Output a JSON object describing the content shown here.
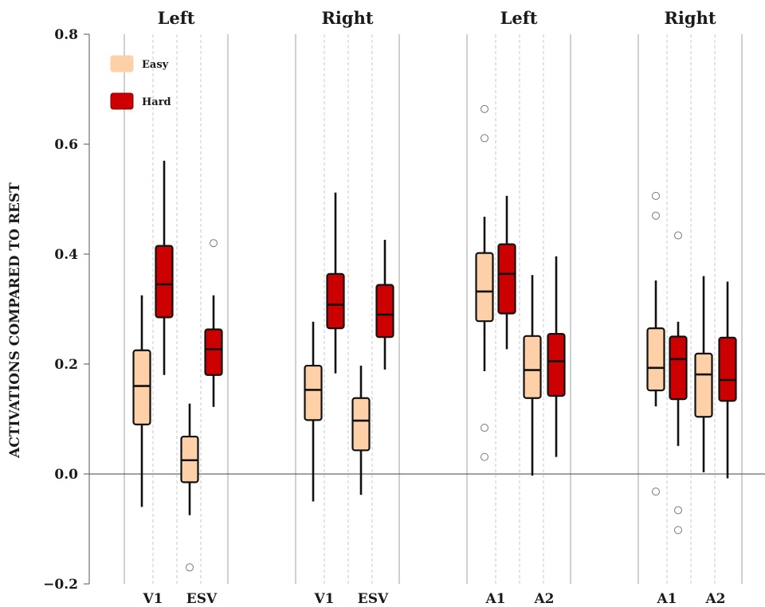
{
  "chart_data": {
    "type": "boxplot",
    "ylabel": "ACTIVATIONS COMPARED TO REST",
    "ylim": [
      -0.2,
      0.8
    ],
    "yticks": [
      "−0.2",
      "0.0",
      "0.2",
      "0.4",
      "0.6",
      "0.8"
    ],
    "ytick_values": [
      -0.2,
      0.0,
      0.2,
      0.4,
      0.6,
      0.8
    ],
    "reference_line": 0.0,
    "legend": {
      "position": "top-left",
      "entries": [
        {
          "name": "Easy",
          "color": "#fdd0a8"
        },
        {
          "name": "Hard",
          "color": "#cc0000"
        }
      ]
    },
    "groups": [
      {
        "title": "Left",
        "regions": [
          {
            "label": "V1",
            "boxes": [
              {
                "condition": "Easy",
                "whisker_low": -0.06,
                "q1": 0.09,
                "median": 0.16,
                "q3": 0.225,
                "whisker_high": 0.325,
                "outliers": []
              },
              {
                "condition": "Hard",
                "whisker_low": 0.18,
                "q1": 0.285,
                "median": 0.345,
                "q3": 0.415,
                "whisker_high": 0.57,
                "outliers": []
              }
            ]
          },
          {
            "label": "ESV",
            "boxes": [
              {
                "condition": "Easy",
                "whisker_low": -0.075,
                "q1": -0.015,
                "median": 0.025,
                "q3": 0.068,
                "whisker_high": 0.128,
                "outliers": [
                  -0.17
                ]
              },
              {
                "condition": "Hard",
                "whisker_low": 0.122,
                "q1": 0.18,
                "median": 0.227,
                "q3": 0.263,
                "whisker_high": 0.325,
                "outliers": [
                  0.42
                ]
              }
            ]
          }
        ]
      },
      {
        "title": "Right",
        "regions": [
          {
            "label": "V1",
            "boxes": [
              {
                "condition": "Easy",
                "whisker_low": -0.05,
                "q1": 0.098,
                "median": 0.153,
                "q3": 0.197,
                "whisker_high": 0.277,
                "outliers": []
              },
              {
                "condition": "Hard",
                "whisker_low": 0.183,
                "q1": 0.265,
                "median": 0.308,
                "q3": 0.364,
                "whisker_high": 0.512,
                "outliers": []
              }
            ]
          },
          {
            "label": "ESV",
            "boxes": [
              {
                "condition": "Easy",
                "whisker_low": -0.038,
                "q1": 0.043,
                "median": 0.097,
                "q3": 0.138,
                "whisker_high": 0.197,
                "outliers": []
              },
              {
                "condition": "Hard",
                "whisker_low": 0.19,
                "q1": 0.249,
                "median": 0.29,
                "q3": 0.344,
                "whisker_high": 0.426,
                "outliers": []
              }
            ]
          }
        ]
      },
      {
        "title": "Left",
        "regions": [
          {
            "label": "A1",
            "boxes": [
              {
                "condition": "Easy",
                "whisker_low": 0.187,
                "q1": 0.278,
                "median": 0.332,
                "q3": 0.402,
                "whisker_high": 0.468,
                "outliers": [
                  0.664,
                  0.611,
                  0.084,
                  0.031
                ]
              },
              {
                "condition": "Hard",
                "whisker_low": 0.227,
                "q1": 0.292,
                "median": 0.364,
                "q3": 0.418,
                "whisker_high": 0.506,
                "outliers": []
              }
            ]
          },
          {
            "label": "A2",
            "boxes": [
              {
                "condition": "Easy",
                "whisker_low": -0.003,
                "q1": 0.138,
                "median": 0.189,
                "q3": 0.251,
                "whisker_high": 0.362,
                "outliers": []
              },
              {
                "condition": "Hard",
                "whisker_low": 0.031,
                "q1": 0.142,
                "median": 0.205,
                "q3": 0.255,
                "whisker_high": 0.396,
                "outliers": []
              }
            ]
          }
        ]
      },
      {
        "title": "Right",
        "regions": [
          {
            "label": "A1",
            "boxes": [
              {
                "condition": "Easy",
                "whisker_low": 0.123,
                "q1": 0.152,
                "median": 0.193,
                "q3": 0.265,
                "whisker_high": 0.352,
                "outliers": [
                  0.506,
                  0.47,
                  -0.032
                ]
              },
              {
                "condition": "Hard",
                "whisker_low": 0.051,
                "q1": 0.136,
                "median": 0.209,
                "q3": 0.25,
                "whisker_high": 0.277,
                "outliers": [
                  0.434,
                  -0.066,
                  -0.102
                ]
              }
            ]
          },
          {
            "label": "A2",
            "boxes": [
              {
                "condition": "Easy",
                "whisker_low": 0.003,
                "q1": 0.104,
                "median": 0.181,
                "q3": 0.219,
                "whisker_high": 0.36,
                "outliers": []
              },
              {
                "condition": "Hard",
                "whisker_low": -0.008,
                "q1": 0.133,
                "median": 0.171,
                "q3": 0.248,
                "whisker_high": 0.35,
                "outliers": []
              }
            ]
          }
        ]
      }
    ]
  }
}
